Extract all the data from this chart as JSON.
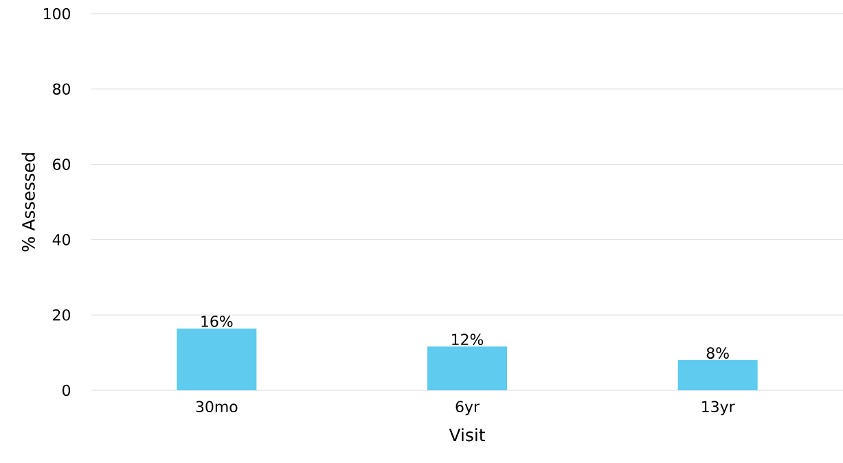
{
  "chart_data": {
    "type": "bar",
    "xlabel": "Visit",
    "ylabel": "% Assessed",
    "categories": [
      "30mo",
      "6yr",
      "13yr"
    ],
    "values": [
      16.4,
      11.6,
      8.0
    ],
    "value_labels": [
      "16%",
      "12%",
      "8%"
    ],
    "color": "#5ecbef",
    "ylim": [
      0,
      100
    ],
    "yticks": [
      0,
      20,
      40,
      60,
      80,
      100
    ],
    "grid": "y"
  }
}
